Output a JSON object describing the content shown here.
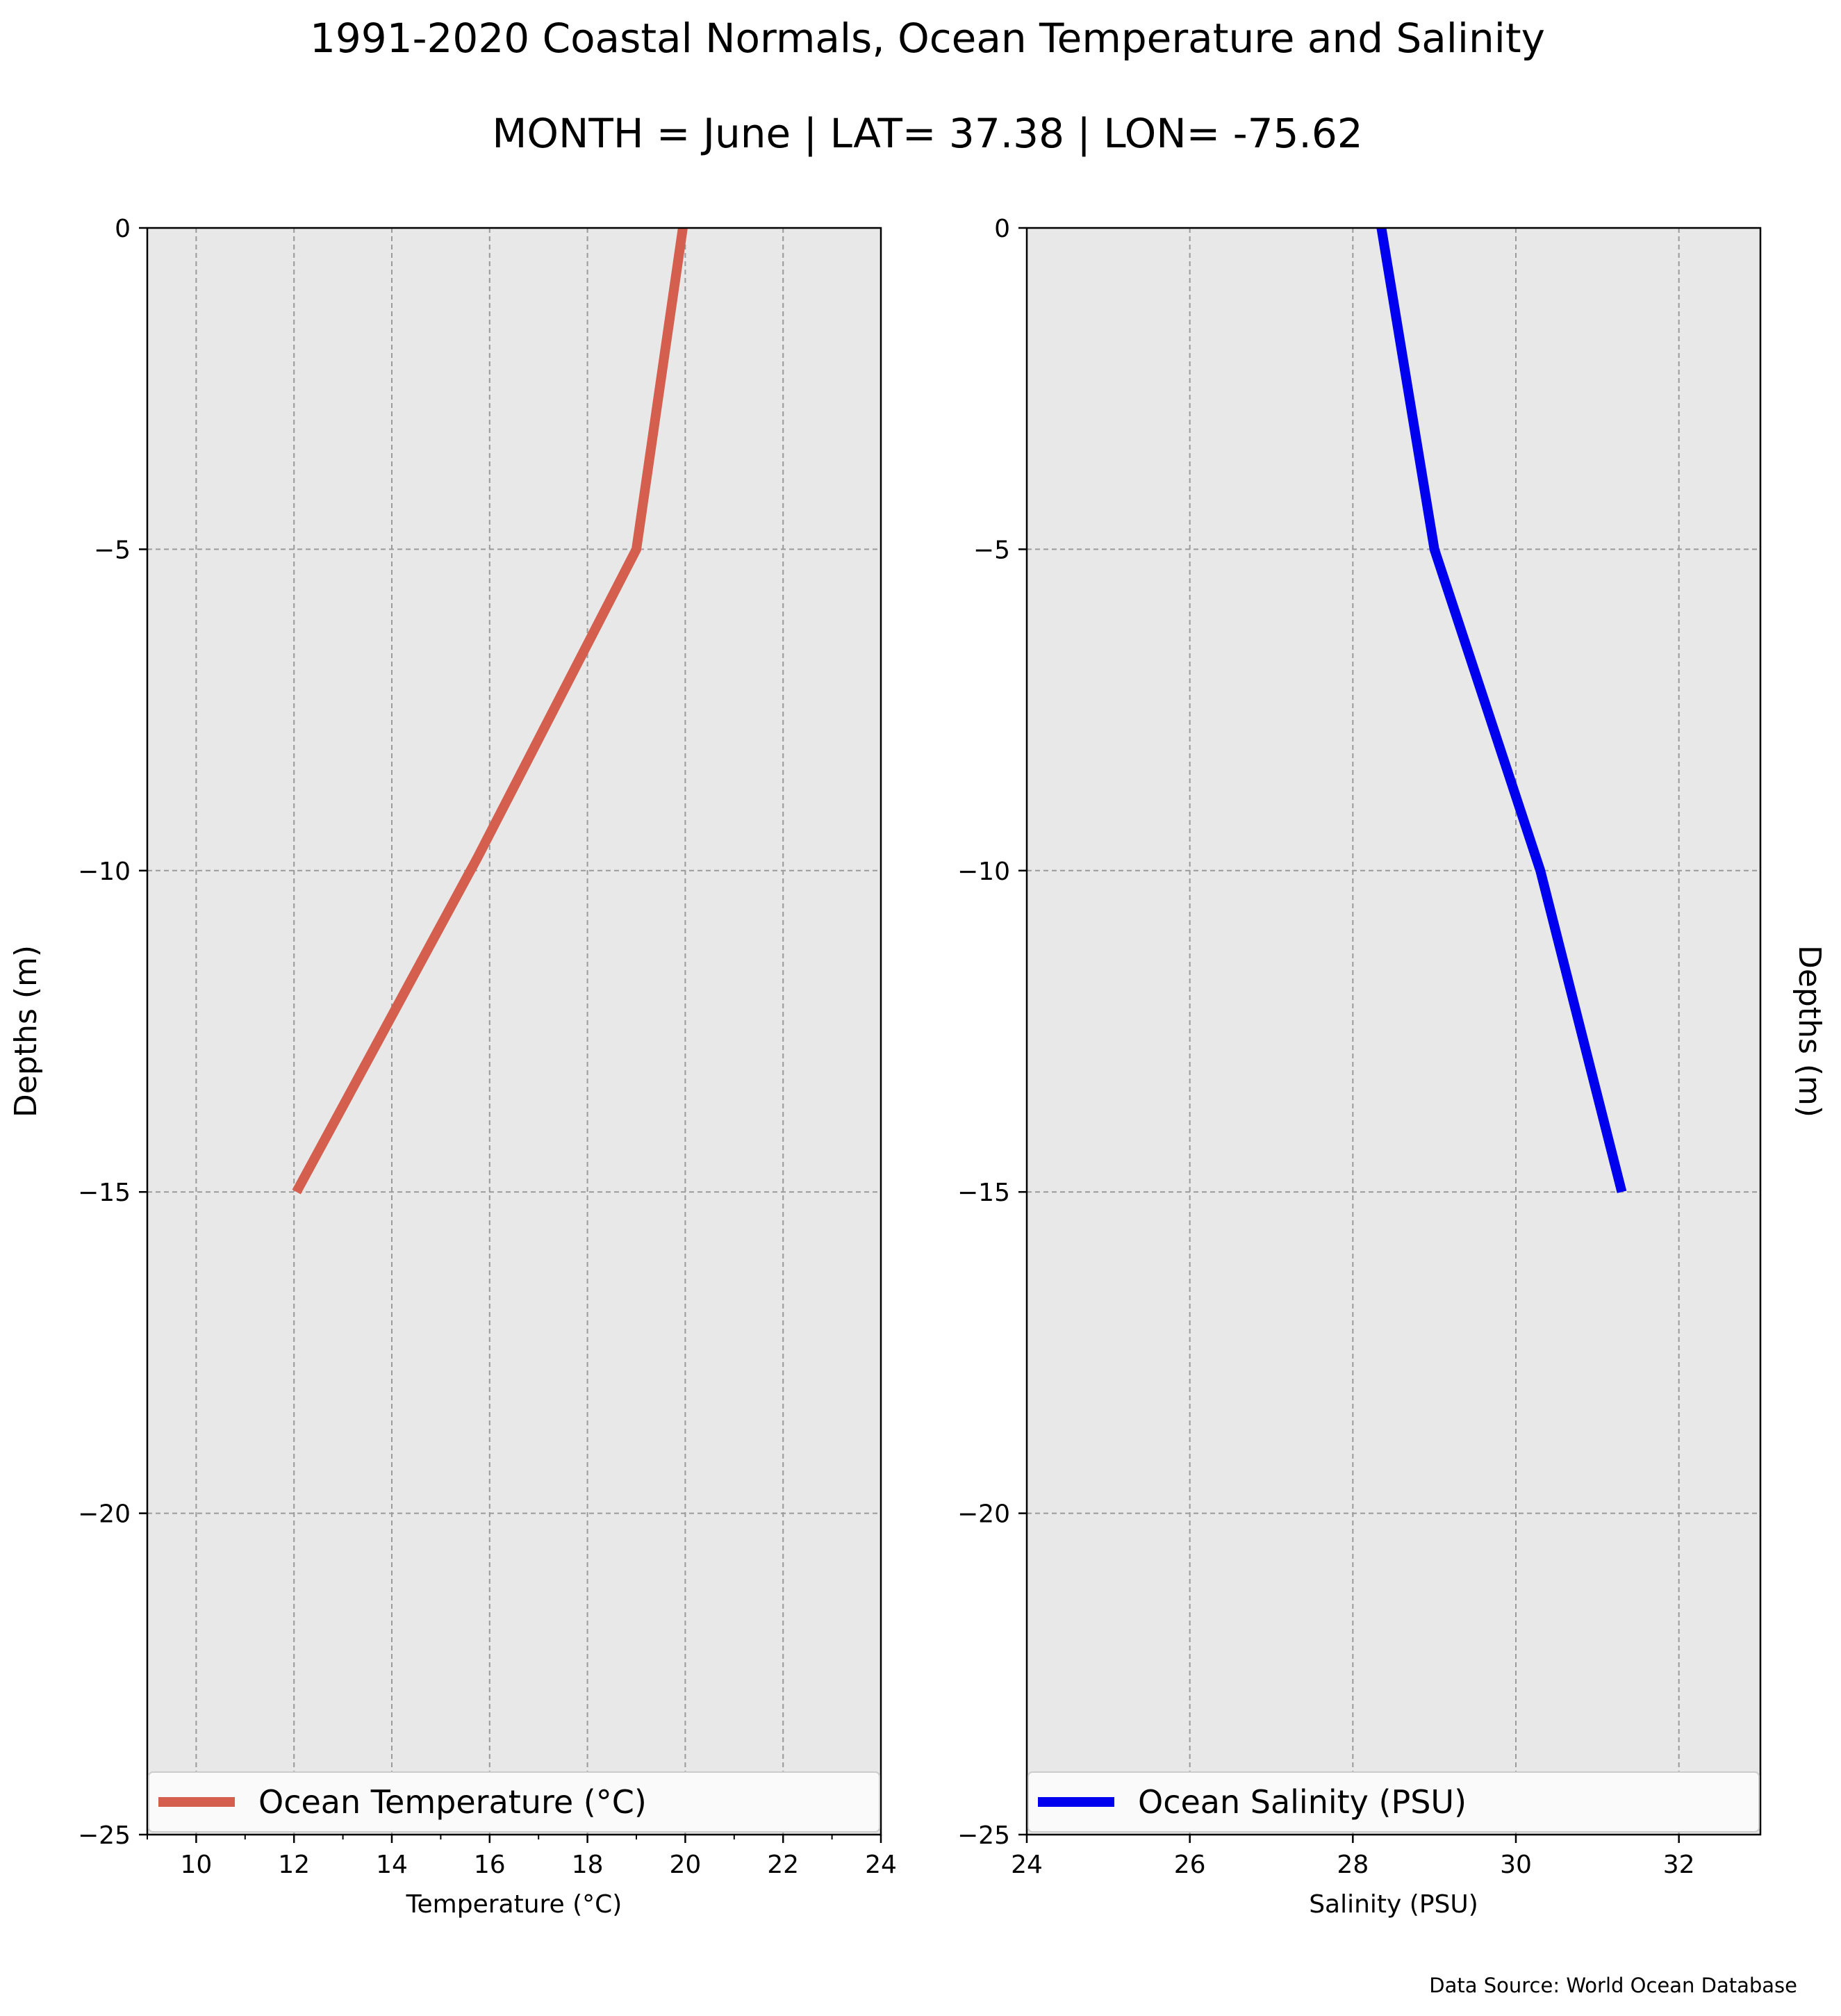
{
  "title": "1991-2020 Coastal Normals, Ocean Temperature and Salinity",
  "subtitle": "MONTH = June | LAT= 37.38 | LON= -75.62",
  "source": "Data Source: World Ocean Database",
  "chart_data": [
    {
      "type": "line",
      "xlabel": "Temperature ($^\\circ$C)",
      "xlabel_display": "Temperature (°C)",
      "ylabel": "Depths (m)",
      "xlim": [
        9,
        24
      ],
      "ylim": [
        -25,
        0
      ],
      "xticks": [
        10,
        12,
        14,
        16,
        18,
        20,
        22,
        24
      ],
      "yticks": [
        0,
        -5,
        -10,
        -15,
        -20,
        -25
      ],
      "ytick_labels": [
        "0",
        "−5",
        "−10",
        "−15",
        "−20",
        "−25"
      ],
      "grid": true,
      "legend_position": "bottom",
      "series": [
        {
          "name": "Ocean Temperature (°C)",
          "color": "#d45f4e",
          "x": [
            19.95,
            19.0,
            15.75,
            12.05
          ],
          "y": [
            0,
            -5,
            -9.8,
            -15
          ]
        }
      ]
    },
    {
      "type": "line",
      "xlabel": "Salinity (PSU)",
      "ylabel": "Depths (m)",
      "xlim": [
        24,
        33
      ],
      "ylim": [
        -25,
        0
      ],
      "xticks": [
        24,
        26,
        28,
        30,
        32
      ],
      "yticks": [
        0,
        -5,
        -10,
        -15,
        -20,
        -25
      ],
      "ytick_labels": [
        "0",
        "−5",
        "−10",
        "−15",
        "−20",
        "−25"
      ],
      "grid": true,
      "legend_position": "bottom",
      "series": [
        {
          "name": "Ocean Salinity (PSU)",
          "color": "#0000ee",
          "x": [
            28.35,
            29.0,
            30.3,
            31.3
          ],
          "y": [
            0,
            -5,
            -10,
            -15
          ]
        }
      ]
    }
  ]
}
